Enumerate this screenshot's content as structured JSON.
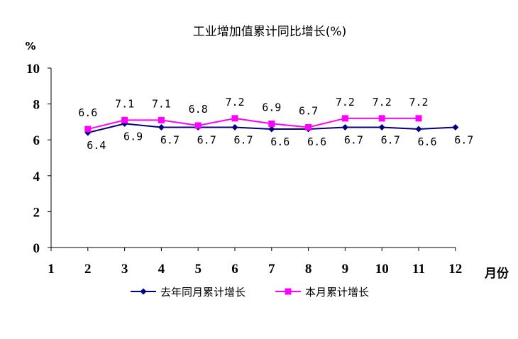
{
  "chart_data": {
    "type": "line",
    "title": "工业增加值累计同比增长(%)",
    "ylabel": "%",
    "xlabel": "月份",
    "ylim": [
      0,
      10
    ],
    "y_ticks": [
      "0",
      "2",
      "4",
      "6",
      "8",
      "10"
    ],
    "x_ticks": [
      "1",
      "2",
      "3",
      "4",
      "5",
      "6",
      "7",
      "8",
      "9",
      "10",
      "11",
      "12"
    ],
    "grid": false,
    "legend_position": "bottom",
    "series": [
      {
        "name": "去年同月累计增长",
        "color": "#000080",
        "marker": "diamond",
        "x": [
          2,
          3,
          4,
          5,
          6,
          7,
          8,
          9,
          10,
          11,
          12
        ],
        "values": [
          6.4,
          6.9,
          6.7,
          6.7,
          6.7,
          6.6,
          6.6,
          6.7,
          6.7,
          6.6,
          6.7
        ],
        "labels": [
          "6.4",
          "6.9",
          "6.7",
          "6.7",
          "6.7",
          "6.6",
          "6.6",
          "6.7",
          "6.7",
          "6.6",
          "6.7"
        ]
      },
      {
        "name": "本月累计增长",
        "color": "#FF00FF",
        "marker": "square",
        "x": [
          2,
          3,
          4,
          5,
          6,
          7,
          8,
          9,
          10,
          11
        ],
        "values": [
          6.6,
          7.1,
          7.1,
          6.8,
          7.2,
          6.9,
          6.7,
          7.2,
          7.2,
          7.2
        ],
        "labels": [
          "6.6",
          "7.1",
          "7.1",
          "6.8",
          "7.2",
          "6.9",
          "6.7",
          "7.2",
          "7.2",
          "7.2"
        ]
      }
    ]
  }
}
